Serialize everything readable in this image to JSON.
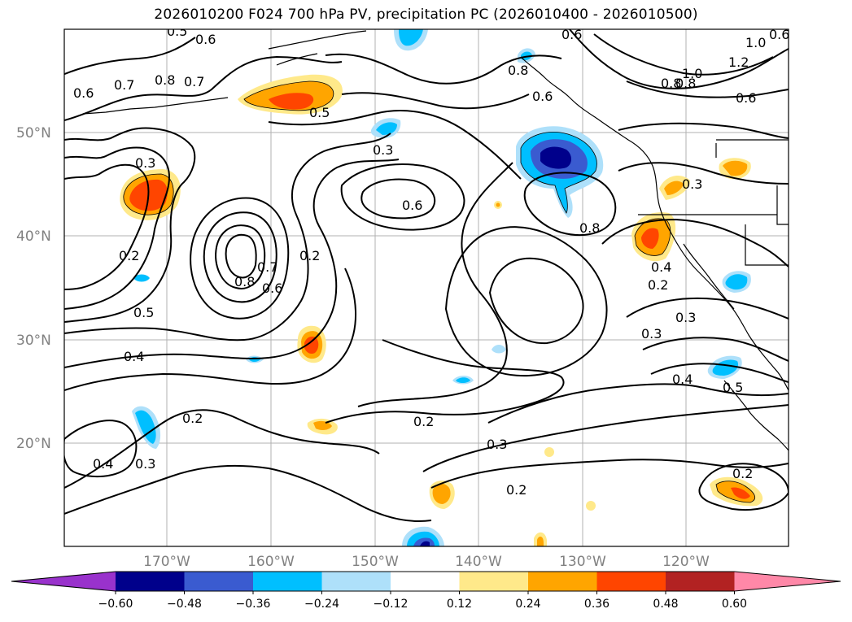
{
  "title": "2026010200 F024 700 hPa PV, precipitation PC (2026010400 - 2026010500)",
  "map": {
    "lat_labels": [
      "50°N",
      "40°N",
      "30°N",
      "20°N"
    ],
    "lon_labels": [
      "170°W",
      "160°W",
      "150°W",
      "140°W",
      "130°W",
      "120°W"
    ],
    "contour_labels": [
      "0.5",
      "0.6",
      "0.6",
      "0.6",
      "0.7",
      "0.7",
      "0.8",
      "0.8",
      "0.6",
      "0.8",
      "0.5",
      "0.3",
      "0.3",
      "0.6",
      "0.8",
      "0.6",
      "1.0",
      "1.2",
      "1.0",
      "0.8",
      "0.6",
      "0.3",
      "0.2",
      "0.8",
      "0.7",
      "0.6",
      "0.2",
      "0.5",
      "0.4",
      "0.2",
      "0.4",
      "0.3",
      "0.2",
      "0.3",
      "0.2",
      "0.2",
      "0.4",
      "0.3",
      "0.3",
      "0.4",
      "0.5",
      "0.2"
    ]
  },
  "colorbar": {
    "ticks": [
      "−0.60",
      "−0.48",
      "−0.36",
      "−0.24",
      "−0.12",
      "0.12",
      "0.24",
      "0.36",
      "0.48",
      "0.60"
    ],
    "colors": [
      "#9932cc",
      "#00008b",
      "#3a5bd0",
      "#00bfff",
      "#aee0fa",
      "#ffffff",
      "#ffe98a",
      "#ffa500",
      "#ff4500",
      "#b22222",
      "#ff88a8"
    ]
  }
}
